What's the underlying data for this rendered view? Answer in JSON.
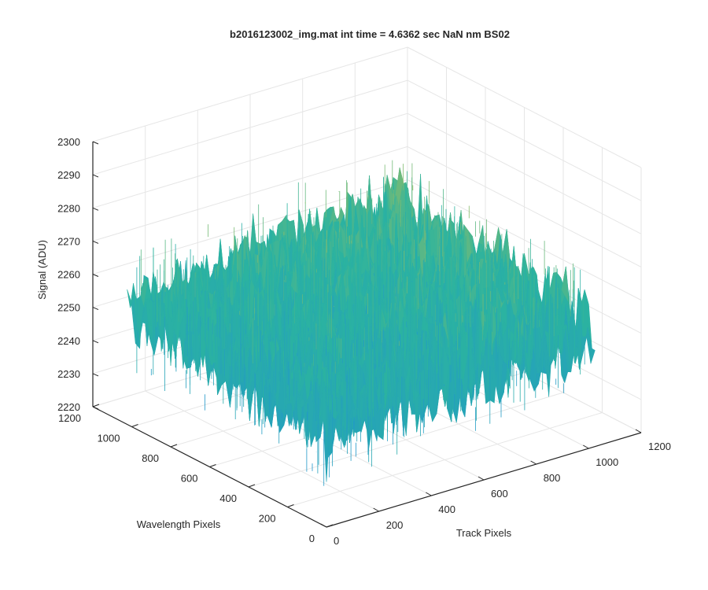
{
  "chart_data": {
    "type": "surface",
    "title": "b2016123002_img.mat int time = 4.6362 sec  NaN nm BS02",
    "xlabel": "Track Pixels",
    "ylabel": "Wavelength Pixels",
    "zlabel": "Signal (ADU)",
    "xlim": [
      0,
      1200
    ],
    "ylim": [
      0,
      1200
    ],
    "zlim": [
      2220,
      2300
    ],
    "x_ticks": [
      "0",
      "200",
      "400",
      "600",
      "800",
      "1000",
      "1200"
    ],
    "y_ticks": [
      "0",
      "200",
      "400",
      "600",
      "800",
      "1000",
      "1200"
    ],
    "z_ticks": [
      "2220",
      "2230",
      "2240",
      "2250",
      "2260",
      "2270",
      "2280",
      "2290",
      "2300"
    ],
    "grid": true,
    "colormap": "parula",
    "data_extent": {
      "x": [
        0,
        1024
      ],
      "y": [
        0,
        1024
      ]
    },
    "signal_approx": {
      "mean": 2255,
      "min": 2228,
      "max": 2290
    },
    "colors": {
      "low": "#1f8fd8",
      "mid": "#2bb3a0",
      "high": "#e3c53a",
      "axis": "#262626",
      "grid": "#e6e6e6"
    }
  }
}
